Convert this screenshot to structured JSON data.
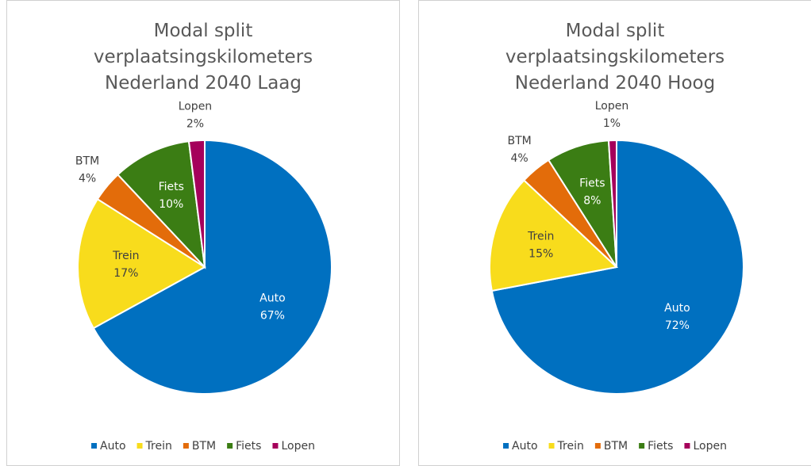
{
  "chart_data": [
    {
      "type": "pie",
      "title": "Modal split verplaatsingskilometers Nederland 2040 Laag",
      "categories": [
        "Auto",
        "Trein",
        "BTM",
        "Fiets",
        "Lopen"
      ],
      "values": [
        67,
        17,
        4,
        10,
        2
      ],
      "value_labels": [
        "67%",
        "17%",
        "4%",
        "10%",
        "2%"
      ],
      "colors": [
        "#0070c0",
        "#f8dc1c",
        "#e36c0a",
        "#3b7d14",
        "#a5005b"
      ],
      "legend": "bottom"
    },
    {
      "type": "pie",
      "title": "Modal split verplaatsingskilometers Nederland 2040 Hoog",
      "categories": [
        "Auto",
        "Trein",
        "BTM",
        "Fiets",
        "Lopen"
      ],
      "values": [
        72,
        15,
        4,
        8,
        1
      ],
      "value_labels": [
        "72%",
        "15%",
        "4%",
        "8%",
        "1%"
      ],
      "colors": [
        "#0070c0",
        "#f8dc1c",
        "#e36c0a",
        "#3b7d14",
        "#a5005b"
      ],
      "legend": "bottom"
    }
  ]
}
